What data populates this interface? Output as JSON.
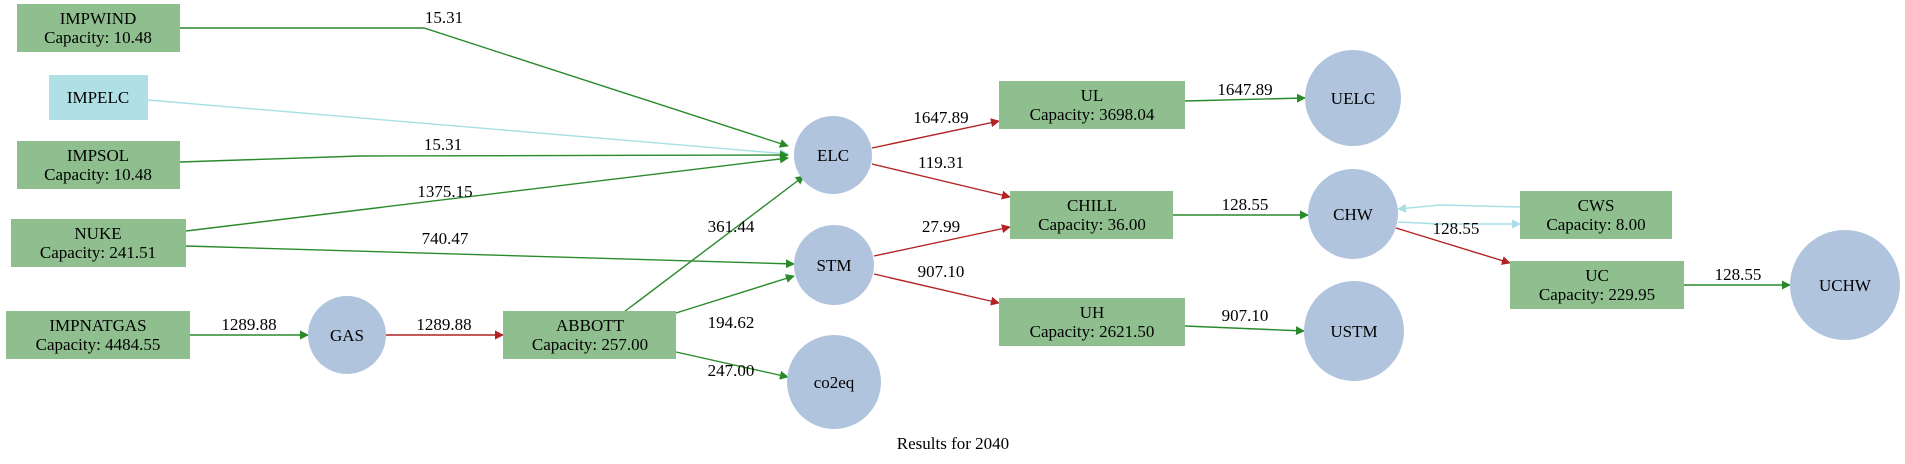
{
  "caption": "Results for 2040",
  "colors": {
    "process": "#8fbf8f",
    "import_plain": "#b0e0e6",
    "commodity": "#b0c4de",
    "flow_green": "#2a8a2a",
    "flow_red": "#b22222",
    "flow_lightblue": "#a8dfe6"
  },
  "nodes": {
    "impwind": {
      "name": "IMPWIND",
      "capacity": "Capacity: 10.48"
    },
    "impelc": {
      "name": "IMPELC"
    },
    "impsol": {
      "name": "IMPSOL",
      "capacity": "Capacity: 10.48"
    },
    "nuke": {
      "name": "NUKE",
      "capacity": "Capacity: 241.51"
    },
    "impnatgas": {
      "name": "IMPNATGAS",
      "capacity": "Capacity: 4484.55"
    },
    "gas": {
      "name": "GAS"
    },
    "abbott": {
      "name": "ABBOTT",
      "capacity": "Capacity: 257.00"
    },
    "elc": {
      "name": "ELC"
    },
    "stm": {
      "name": "STM"
    },
    "co2eq": {
      "name": "co2eq"
    },
    "ul": {
      "name": "UL",
      "capacity": "Capacity: 3698.04"
    },
    "chill": {
      "name": "CHILL",
      "capacity": "Capacity: 36.00"
    },
    "uh": {
      "name": "UH",
      "capacity": "Capacity: 2621.50"
    },
    "uelc": {
      "name": "UELC"
    },
    "chw": {
      "name": "CHW"
    },
    "ustm": {
      "name": "USTM"
    },
    "cws": {
      "name": "CWS",
      "capacity": "Capacity: 8.00"
    },
    "uc": {
      "name": "UC",
      "capacity": "Capacity: 229.95"
    },
    "uchw": {
      "name": "UCHW"
    }
  },
  "edges": {
    "impwind_elc": "15.31",
    "impsol_elc": "15.31",
    "nuke_elc": "1375.15",
    "nuke_stm": "740.47",
    "impnatgas_gas": "1289.88",
    "gas_abbott": "1289.88",
    "abbott_elc": "361.44",
    "abbott_stm": "194.62",
    "abbott_co2eq": "247.00",
    "elc_ul": "1647.89",
    "elc_chill": "119.31",
    "stm_chill": "27.99",
    "stm_uh": "907.10",
    "ul_uelc": "1647.89",
    "chill_chw": "128.55",
    "uh_ustm": "907.10",
    "chw_uc": "128.55",
    "uc_uchw": "128.55"
  }
}
